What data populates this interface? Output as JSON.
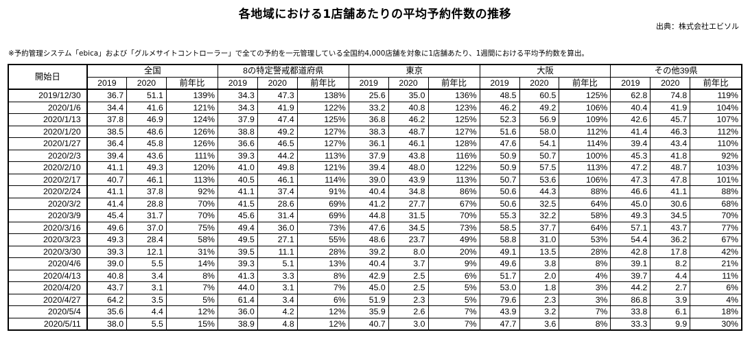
{
  "title": "各地域における1店舗あたりの平均予約件数の推移",
  "source": "出典：株式会社エビソル",
  "note": "※予約管理システム「ebica」および「グルメサイトコントローラー」で全ての予約を一元管理している全国約4,000店舗を対象に1店舗あたり、1週間における平均予約数を算出。",
  "table": {
    "date_header": "開始日",
    "groups": [
      "全国",
      "8の特定警戒都道府県",
      "東京",
      "大阪",
      "その他39県"
    ],
    "subheaders": [
      "2019",
      "2020",
      "前年比"
    ],
    "rows": [
      [
        "2019/12/30",
        "36.7",
        "51.1",
        "139%",
        "34.3",
        "47.3",
        "138%",
        "25.6",
        "35.0",
        "136%",
        "48.5",
        "60.5",
        "125%",
        "62.8",
        "74.8",
        "119%"
      ],
      [
        "2020/1/6",
        "34.4",
        "41.6",
        "121%",
        "34.3",
        "41.9",
        "122%",
        "33.2",
        "40.8",
        "123%",
        "46.2",
        "49.2",
        "106%",
        "40.4",
        "41.9",
        "104%"
      ],
      [
        "2020/1/13",
        "37.8",
        "46.9",
        "124%",
        "37.9",
        "47.4",
        "125%",
        "36.8",
        "46.2",
        "125%",
        "52.3",
        "56.9",
        "109%",
        "42.6",
        "45.7",
        "107%"
      ],
      [
        "2020/1/20",
        "38.5",
        "48.6",
        "126%",
        "38.8",
        "49.2",
        "127%",
        "38.3",
        "48.7",
        "127%",
        "51.6",
        "58.0",
        "112%",
        "41.4",
        "46.3",
        "112%"
      ],
      [
        "2020/1/27",
        "36.4",
        "45.8",
        "126%",
        "36.6",
        "46.5",
        "127%",
        "36.1",
        "46.1",
        "128%",
        "47.6",
        "54.1",
        "114%",
        "39.4",
        "43.4",
        "110%"
      ],
      [
        "2020/2/3",
        "39.4",
        "43.6",
        "111%",
        "39.3",
        "44.2",
        "113%",
        "37.9",
        "43.8",
        "116%",
        "50.9",
        "50.7",
        "100%",
        "45.3",
        "41.8",
        "92%"
      ],
      [
        "2020/2/10",
        "41.1",
        "49.3",
        "120%",
        "41.0",
        "49.8",
        "121%",
        "39.4",
        "48.0",
        "122%",
        "50.9",
        "57.5",
        "113%",
        "47.2",
        "48.7",
        "103%"
      ],
      [
        "2020/2/17",
        "40.7",
        "46.1",
        "113%",
        "40.5",
        "46.1",
        "114%",
        "39.0",
        "43.9",
        "113%",
        "50.7",
        "53.6",
        "106%",
        "47.3",
        "47.8",
        "101%"
      ],
      [
        "2020/2/24",
        "41.1",
        "37.8",
        "92%",
        "41.1",
        "37.4",
        "91%",
        "40.4",
        "34.8",
        "86%",
        "50.6",
        "44.3",
        "88%",
        "46.6",
        "41.1",
        "88%"
      ],
      [
        "2020/3/2",
        "41.4",
        "28.8",
        "70%",
        "41.5",
        "28.6",
        "69%",
        "41.2",
        "27.7",
        "67%",
        "50.6",
        "32.5",
        "64%",
        "45.0",
        "30.6",
        "68%"
      ],
      [
        "2020/3/9",
        "45.4",
        "31.7",
        "70%",
        "45.6",
        "31.4",
        "69%",
        "44.8",
        "31.5",
        "70%",
        "55.3",
        "32.2",
        "58%",
        "49.3",
        "34.5",
        "70%"
      ],
      [
        "2020/3/16",
        "49.6",
        "37.0",
        "75%",
        "49.4",
        "36.0",
        "73%",
        "47.6",
        "34.5",
        "73%",
        "58.5",
        "37.7",
        "64%",
        "57.1",
        "43.7",
        "77%"
      ],
      [
        "2020/3/23",
        "49.3",
        "28.4",
        "58%",
        "49.5",
        "27.1",
        "55%",
        "48.6",
        "23.7",
        "49%",
        "58.8",
        "31.0",
        "53%",
        "54.4",
        "36.2",
        "67%"
      ],
      [
        "2020/3/30",
        "39.3",
        "12.1",
        "31%",
        "39.5",
        "11.1",
        "28%",
        "39.2",
        "8.0",
        "20%",
        "49.1",
        "13.5",
        "28%",
        "42.8",
        "17.8",
        "42%"
      ],
      [
        "2020/4/6",
        "39.0",
        "5.5",
        "14%",
        "39.3",
        "5.1",
        "13%",
        "40.4",
        "3.7",
        "9%",
        "49.6",
        "3.8",
        "8%",
        "39.1",
        "8.2",
        "21%"
      ],
      [
        "2020/4/13",
        "40.8",
        "3.4",
        "8%",
        "41.3",
        "3.3",
        "8%",
        "42.9",
        "2.5",
        "6%",
        "51.7",
        "2.0",
        "4%",
        "39.7",
        "4.4",
        "11%"
      ],
      [
        "2020/4/20",
        "43.7",
        "3.1",
        "7%",
        "44.0",
        "3.1",
        "7%",
        "45.0",
        "2.5",
        "5%",
        "53.0",
        "1.8",
        "3%",
        "44.2",
        "2.7",
        "6%"
      ],
      [
        "2020/4/27",
        "64.2",
        "3.5",
        "5%",
        "61.4",
        "3.4",
        "6%",
        "51.9",
        "2.3",
        "5%",
        "79.6",
        "2.3",
        "3%",
        "86.8",
        "3.9",
        "4%"
      ],
      [
        "2020/5/4",
        "35.6",
        "4.4",
        "12%",
        "36.0",
        "4.2",
        "12%",
        "35.9",
        "2.6",
        "7%",
        "43.9",
        "3.2",
        "7%",
        "33.8",
        "6.1",
        "18%"
      ],
      [
        "2020/5/11",
        "38.0",
        "5.5",
        "15%",
        "38.9",
        "4.8",
        "12%",
        "40.7",
        "3.0",
        "7%",
        "47.7",
        "3.6",
        "8%",
        "33.3",
        "9.9",
        "30%"
      ]
    ]
  }
}
